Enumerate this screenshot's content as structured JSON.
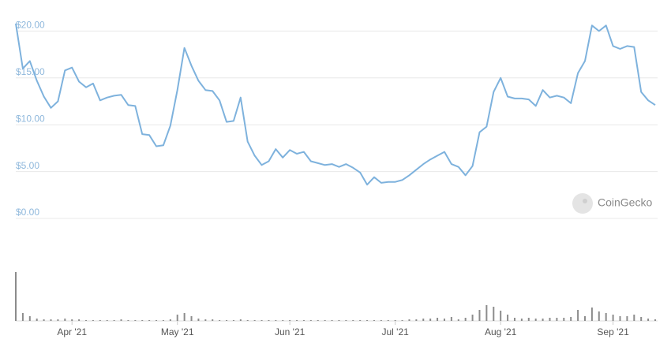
{
  "chart_data": [
    {
      "type": "line",
      "categories": [
        null,
        null,
        null,
        null,
        null,
        null,
        null,
        null,
        "Apr '21",
        null,
        null,
        null,
        null,
        null,
        null,
        null,
        null,
        null,
        null,
        null,
        null,
        null,
        null,
        "May '21",
        null,
        null,
        null,
        null,
        null,
        null,
        null,
        null,
        null,
        null,
        null,
        null,
        null,
        null,
        null,
        "Jun '21",
        null,
        null,
        null,
        null,
        null,
        null,
        null,
        null,
        null,
        null,
        null,
        null,
        null,
        null,
        "Jul '21",
        null,
        null,
        null,
        null,
        null,
        null,
        null,
        null,
        null,
        null,
        null,
        null,
        null,
        null,
        "Aug '21",
        null,
        null,
        null,
        null,
        null,
        null,
        null,
        null,
        null,
        null,
        null,
        null,
        null,
        null,
        null,
        "Sep '21",
        null,
        null,
        null,
        null,
        null,
        null
      ],
      "series": [
        {
          "color": "#7eb2dd",
          "values": [
            20.8,
            16,
            16.8,
            14.7,
            13,
            11.8,
            12.5,
            15.8,
            16.1,
            14.6,
            14,
            14.4,
            12.6,
            12.9,
            13.1,
            13.2,
            12.1,
            12,
            9,
            8.9,
            7.7,
            7.8,
            9.9,
            13.7,
            18.2,
            16.3,
            14.7,
            13.7,
            13.6,
            12.6,
            10.3,
            10.4,
            12.9,
            8.2,
            6.7,
            5.7,
            6.1,
            7.4,
            6.5,
            7.3,
            6.9,
            7.1,
            6.1,
            5.9,
            5.7,
            5.8,
            5.5,
            5.8,
            5.4,
            4.9,
            3.6,
            4.4,
            3.8,
            3.9,
            3.9,
            4.1,
            4.6,
            5.2,
            5.8,
            6.3,
            6.7,
            7.1,
            5.8,
            5.5,
            4.6,
            5.6,
            9.2,
            9.8,
            13.5,
            15,
            13,
            12.8,
            12.8,
            12.7,
            12,
            13.7,
            12.9,
            13.1,
            12.9,
            12.3,
            15.5,
            16.8,
            20.6,
            20,
            20.6,
            18.4,
            18.1,
            18.4,
            18.3,
            13.5,
            12.6,
            12.1
          ]
        }
      ],
      "ylim": [
        0,
        21
      ],
      "yticks": [
        {
          "value": 0,
          "label": "$0.00"
        },
        {
          "value": 5,
          "label": "$5.00"
        },
        {
          "value": 10,
          "label": "$10.00"
        },
        {
          "value": 15,
          "label": "$15.00"
        },
        {
          "value": 20,
          "label": "$20.00"
        }
      ],
      "grid": true,
      "annotation": "CoinGecko"
    },
    {
      "type": "bar",
      "color": "#8c8c8c",
      "values": [
        62,
        10,
        6,
        3,
        2,
        2,
        2,
        3,
        2,
        2,
        1,
        1,
        1,
        1,
        1,
        2,
        1,
        1,
        1,
        1,
        1,
        1,
        2,
        8,
        10,
        6,
        3,
        2,
        2,
        1,
        1,
        1,
        2,
        1,
        1,
        1,
        1,
        1,
        1,
        1,
        1,
        1,
        1,
        1,
        1,
        1,
        1,
        1,
        1,
        1,
        1,
        1,
        1,
        1,
        1,
        1,
        2,
        2,
        3,
        3,
        4,
        3,
        5,
        2,
        4,
        8,
        14,
        20,
        18,
        13,
        8,
        4,
        3,
        4,
        3,
        3,
        4,
        4,
        4,
        5,
        14,
        6,
        17,
        12,
        10,
        8,
        6,
        6,
        8,
        5,
        3,
        2
      ]
    }
  ]
}
